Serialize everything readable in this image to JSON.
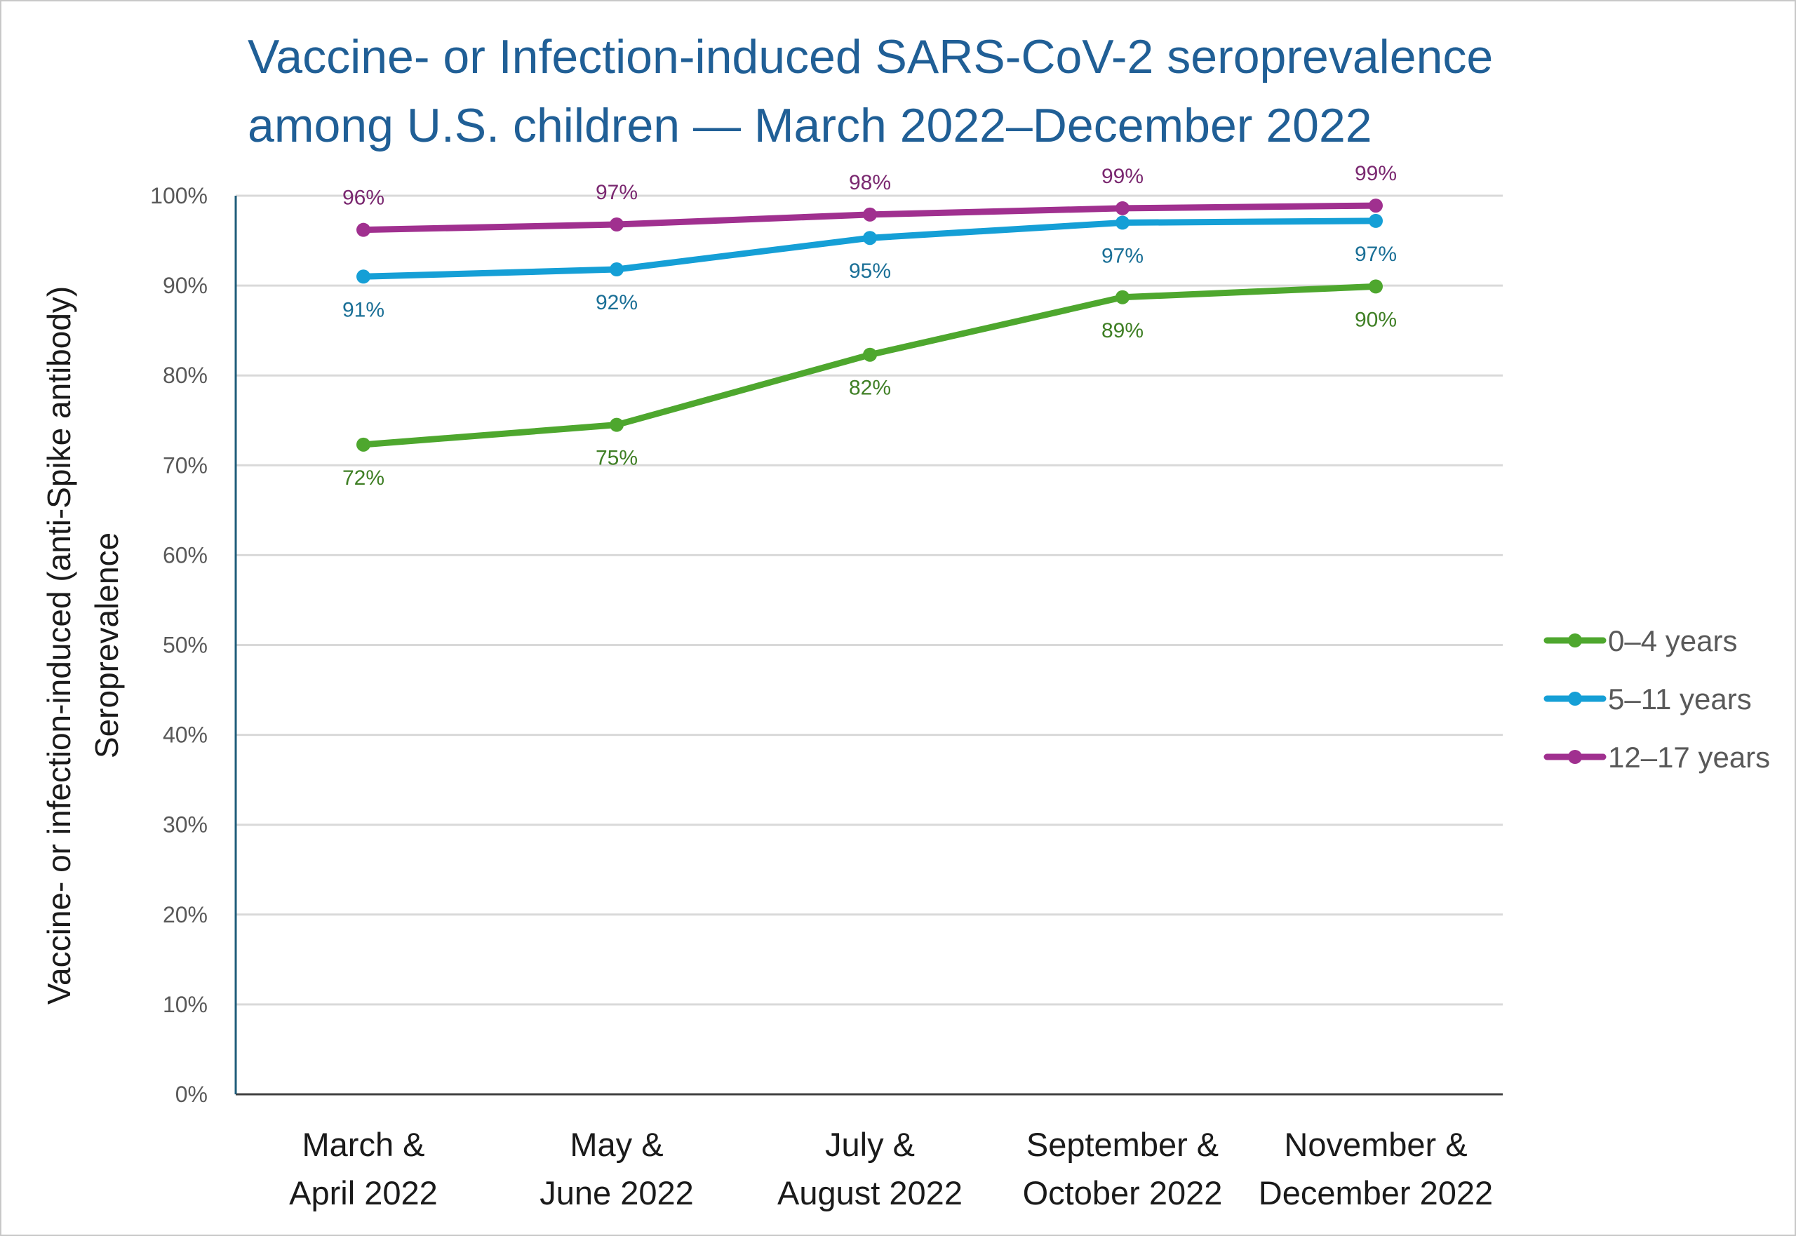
{
  "chart_data": {
    "type": "line",
    "title": [
      "Vaccine- or Infection-induced SARS-CoV-2 seroprevalence",
      "among U.S. children — March 2022–December 2022"
    ],
    "ylabel": [
      "Vaccine- or infection-induced (anti-Spike antibody)",
      "Seroprevalence"
    ],
    "xlabel": "",
    "categories": [
      [
        "March &",
        "April 2022"
      ],
      [
        "May &",
        "June 2022"
      ],
      [
        "July &",
        "August 2022"
      ],
      [
        "September &",
        "October 2022"
      ],
      [
        "November &",
        "December 2022"
      ]
    ],
    "ylim": [
      0,
      100
    ],
    "yticks": [
      "0%",
      "10%",
      "20%",
      "30%",
      "40%",
      "50%",
      "60%",
      "70%",
      "80%",
      "90%",
      "100%"
    ],
    "grid": true,
    "legend_position": "right",
    "series": [
      {
        "name": "0–4 years",
        "color": "#4ea72e",
        "label_color": "#3f7f25",
        "label_pos": "below",
        "values": [
          72.3,
          74.5,
          82.3,
          88.7,
          89.9
        ],
        "labels": [
          "72%",
          "75%",
          "82%",
          "89%",
          "90%"
        ]
      },
      {
        "name": "5–11 years",
        "color": "#159fd6",
        "label_color": "#1a6f96",
        "label_pos": "below",
        "values": [
          91.0,
          91.8,
          95.3,
          97.0,
          97.2
        ],
        "labels": [
          "91%",
          "92%",
          "95%",
          "97%",
          "97%"
        ]
      },
      {
        "name": "12–17 years",
        "color": "#a0308f",
        "label_color": "#7a2870",
        "label_pos": "above",
        "values": [
          96.2,
          96.8,
          97.9,
          98.6,
          98.9
        ],
        "labels": [
          "96%",
          "97%",
          "98%",
          "99%",
          "99%"
        ]
      }
    ]
  }
}
